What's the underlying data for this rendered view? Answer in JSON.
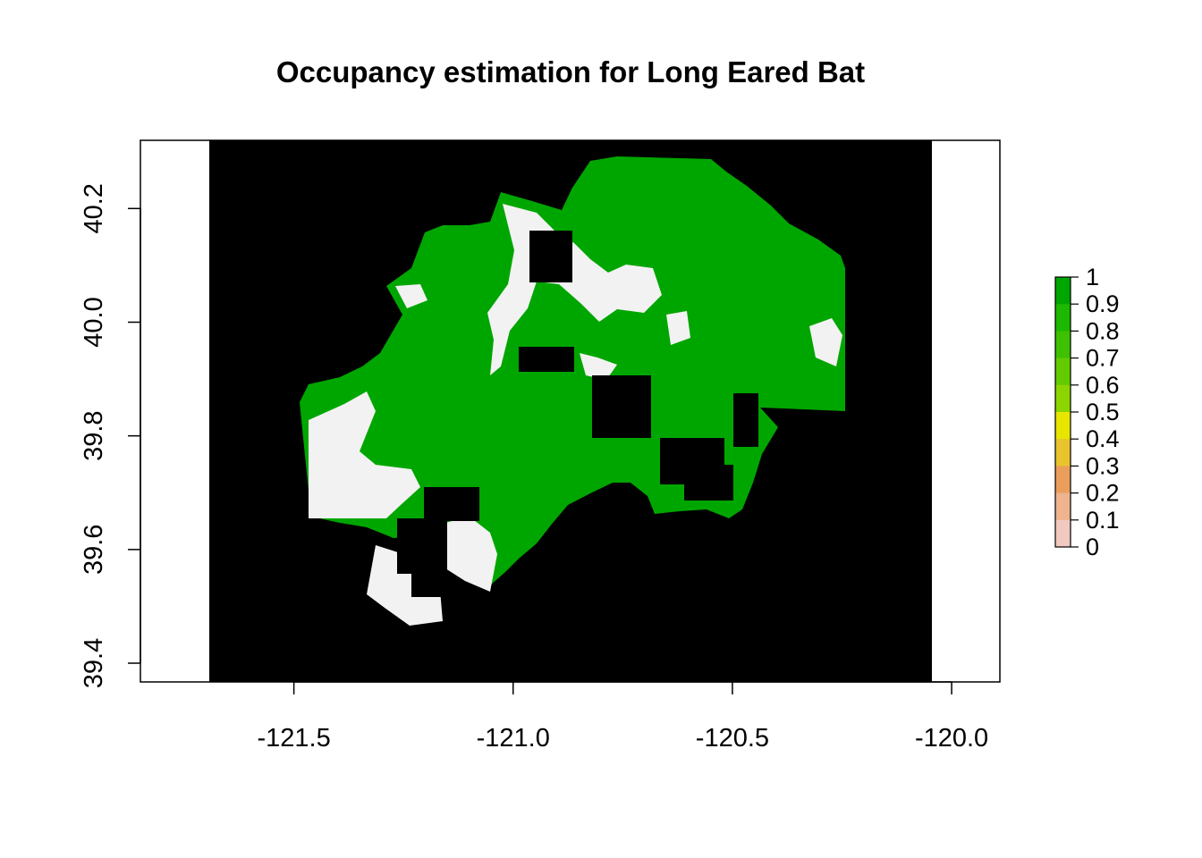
{
  "title": "Occupancy estimation for Long Eared Bat",
  "map_data": {
    "type": "raster",
    "x_axis": {
      "ticks": [
        -121.5,
        -121.0,
        -120.5,
        -120.0
      ],
      "labels": [
        "-121.5",
        "-121.0",
        "-120.5",
        "-120.0"
      ],
      "range": [
        -121.85,
        -119.89
      ]
    },
    "y_axis": {
      "ticks": [
        39.4,
        39.6,
        39.8,
        40.0,
        40.2
      ],
      "labels": [
        "39.4",
        "39.6",
        "39.8",
        "40.0",
        "40.2"
      ],
      "range": [
        39.367,
        40.32
      ]
    },
    "raster_extent": {
      "x": [
        -121.69,
        -120.04
      ],
      "y": [
        39.367,
        40.32
      ]
    },
    "colors": {
      "background": "#000000",
      "high_occupancy": "#00a600",
      "low_occupancy": "#f2f2f2"
    }
  },
  "legend": {
    "labels": [
      "1",
      "0.9",
      "0.8",
      "0.7",
      "0.6",
      "0.5",
      "0.4",
      "0.3",
      "0.2",
      "0.1",
      "0"
    ],
    "colors": [
      "#00a600",
      "#1db800",
      "#3ec100",
      "#63cb00",
      "#8bd500",
      "#e6e600",
      "#e8c32e",
      "#eb9e5c",
      "#edb48e",
      "#f0c9c0",
      "#f2f2f2"
    ]
  }
}
